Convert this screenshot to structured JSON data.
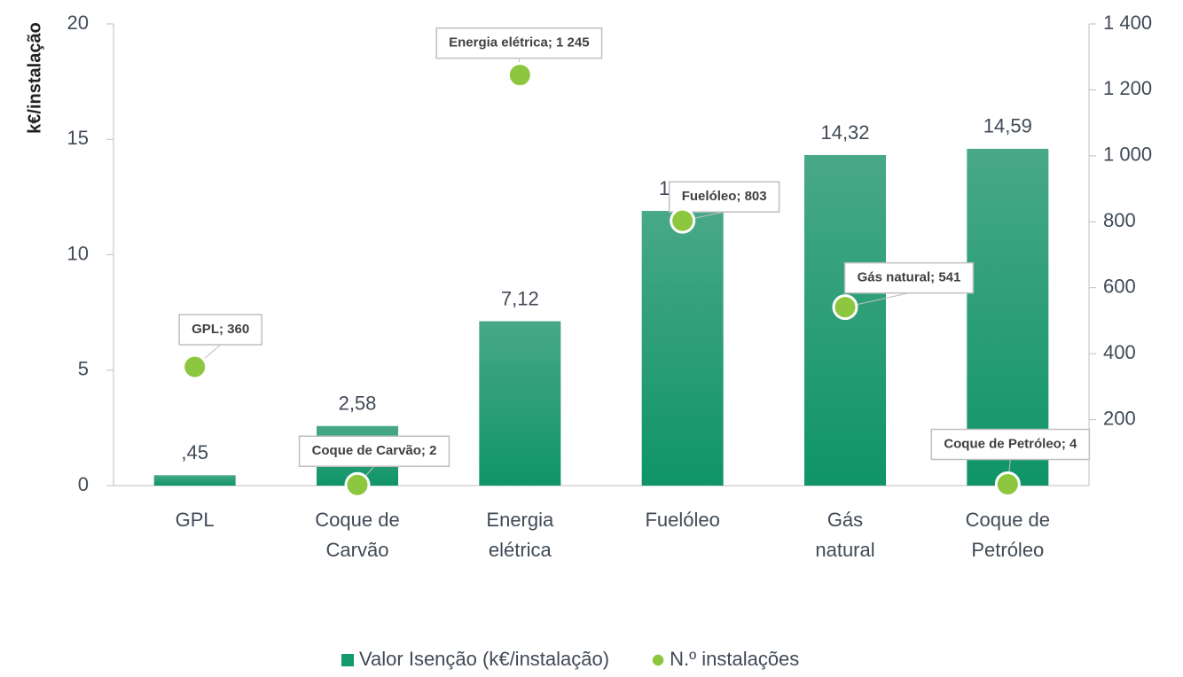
{
  "chart_data": {
    "type": "bar",
    "y_label": "k€/instalação",
    "categories": [
      "GPL",
      "Coque de Carvão",
      "Energia elétrica",
      "Fuelóleo",
      "Gás natural",
      "Coque de Petróleo"
    ],
    "series": [
      {
        "name": "Valor Isenção (k€/instalação)",
        "color": "#139a6c",
        "type": "bar",
        "values": [
          0.45,
          2.58,
          7.12,
          11.9,
          14.32,
          14.59
        ],
        "value_labels": [
          ",45",
          "2,58",
          "7,12",
          "11,90",
          "14,32",
          "14,59"
        ]
      },
      {
        "name": "N.º instalações",
        "color": "#8dc63f",
        "type": "scatter",
        "axis": "y2",
        "values": [
          360,
          2,
          1245,
          803,
          541,
          4
        ],
        "value_labels": [
          "GPL; 360",
          "Coque de Carvão; 2",
          "Energia elétrica; 1 245",
          "Fuelóleo; 803",
          "Gás natural; 541",
          "Coque de Petróleo; 4"
        ]
      }
    ],
    "ylim": [
      0,
      20
    ],
    "yticks": [
      0,
      5,
      10,
      15,
      20
    ],
    "y2lim": [
      0,
      1400
    ],
    "y2ticks": [
      200,
      400,
      600,
      800,
      {
        "value": 1000,
        "label": "1 000"
      },
      {
        "value": 1200,
        "label": "1 200"
      },
      {
        "value": 1400,
        "label": "1 400"
      }
    ],
    "legend": "bottom"
  }
}
